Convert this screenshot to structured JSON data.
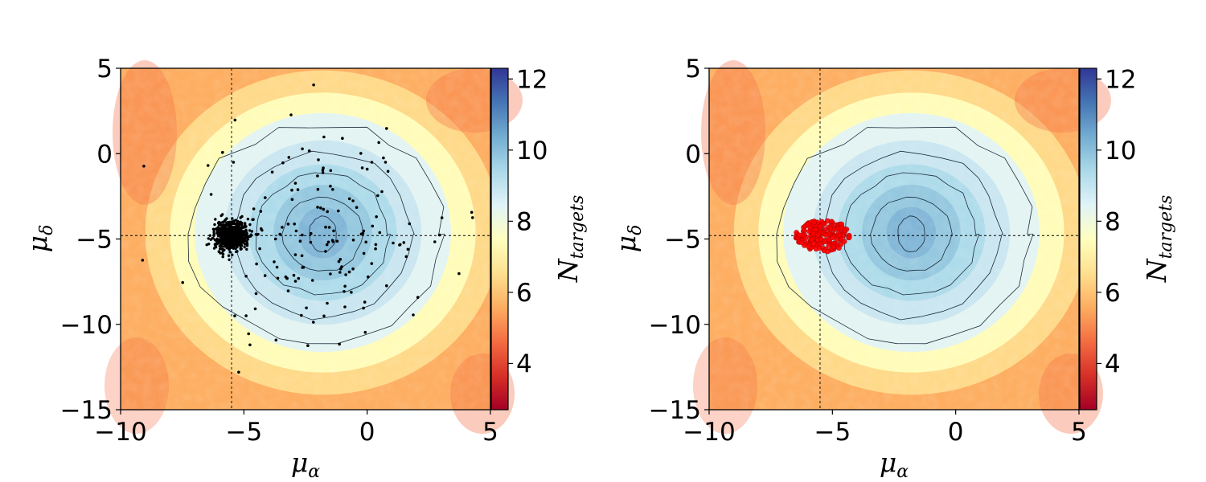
{
  "chart_data": [
    {
      "type": "heatmap",
      "panel": "left",
      "xlabel_main": "μ",
      "xlabel_sub": "α",
      "ylabel_main": "μ",
      "ylabel_sub": "δ",
      "xlim": [
        -10,
        5
      ],
      "ylim": [
        -15,
        5
      ],
      "xticks": [
        -10,
        -5,
        0,
        5
      ],
      "yticks": [
        -15,
        -10,
        -5,
        0,
        5
      ],
      "xtick_labels": [
        "−10",
        "−5",
        "0",
        "5"
      ],
      "ytick_labels": [
        "−15",
        "−10",
        "−5",
        "0",
        "5"
      ],
      "reference_lines": {
        "x": -5.5,
        "y": -4.8
      },
      "density_peak": {
        "x": -1.8,
        "y": -5.0
      },
      "contour_radii": [
        {
          "rx": 0.55,
          "ry": 1.05
        },
        {
          "rx": 1.6,
          "ry": 2.2
        },
        {
          "rx": 2.7,
          "ry": 3.5
        },
        {
          "rx": 3.6,
          "ry": 4.9
        },
        {
          "rx": 4.9,
          "ry": 6.5
        }
      ],
      "overlay": {
        "marker": "dot",
        "color": "#000000",
        "cluster_center": {
          "x": -5.5,
          "y": -4.8
        },
        "cluster_radius": {
          "x": 0.55,
          "y": 0.7
        }
      },
      "colorbar": {
        "label_main": "N",
        "label_sub": "targets",
        "range": [
          2.7,
          12.3
        ],
        "ticks": [
          4,
          6,
          8,
          10,
          12
        ],
        "tick_labels": [
          "4",
          "6",
          "8",
          "10",
          "12"
        ],
        "cmap": "RdYlBu"
      }
    },
    {
      "type": "heatmap",
      "panel": "right",
      "xlabel_main": "μ",
      "xlabel_sub": "α",
      "ylabel_main": "μ",
      "ylabel_sub": "δ",
      "xlim": [
        -10,
        5
      ],
      "ylim": [
        -15,
        5
      ],
      "xticks": [
        -10,
        -5,
        0,
        5
      ],
      "yticks": [
        -15,
        -10,
        -5,
        0,
        5
      ],
      "xtick_labels": [
        "−10",
        "−5",
        "0",
        "5"
      ],
      "ytick_labels": [
        "−15",
        "−10",
        "−5",
        "0",
        "5"
      ],
      "reference_lines": {
        "x": -5.5,
        "y": -4.8
      },
      "density_peak": {
        "x": -1.8,
        "y": -5.0
      },
      "contour_radii": [
        {
          "rx": 0.55,
          "ry": 1.05
        },
        {
          "rx": 1.6,
          "ry": 2.2
        },
        {
          "rx": 2.7,
          "ry": 3.5
        },
        {
          "rx": 3.6,
          "ry": 4.9
        },
        {
          "rx": 4.9,
          "ry": 6.5
        }
      ],
      "overlay": {
        "marker": "circle",
        "color": "#ff0000",
        "cluster_center": {
          "x": -5.4,
          "y": -4.8
        },
        "cluster_radius": {
          "x": 1.1,
          "y": 0.95
        }
      },
      "colorbar": {
        "label_main": "N",
        "label_sub": "targets",
        "range": [
          2.7,
          12.3
        ],
        "ticks": [
          4,
          6,
          8,
          10,
          12
        ],
        "tick_labels": [
          "4",
          "6",
          "8",
          "10",
          "12"
        ],
        "cmap": "RdYlBu"
      }
    }
  ]
}
